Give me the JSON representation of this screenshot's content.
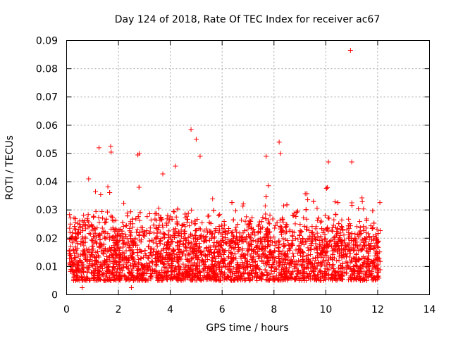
{
  "chart_data": {
    "type": "scatter",
    "title": "Day 124 of 2018, Rate Of TEC Index for receiver ac67",
    "xlabel": "GPS time / hours",
    "ylabel": "ROTI / TECUs",
    "xlim": [
      0,
      14
    ],
    "ylim": [
      0,
      0.09
    ],
    "xticks": [
      0,
      2,
      4,
      6,
      8,
      10,
      12,
      14
    ],
    "yticks": [
      0,
      0.01,
      0.02,
      0.03,
      0.04,
      0.05,
      0.06,
      0.07,
      0.08,
      0.09
    ],
    "xtick_labels": [
      "0",
      "2",
      "4",
      "6",
      "8",
      "10",
      "12",
      "14"
    ],
    "ytick_labels": [
      "0",
      "0.01",
      "0.02",
      "0.03",
      "0.04",
      "0.05",
      "0.06",
      "0.07",
      "0.08",
      "0.09"
    ],
    "grid": true,
    "marker": "+",
    "color": "#ff0000",
    "series": [
      {
        "name": "ROTI",
        "x_range": [
          0.1,
          12.1
        ],
        "bulk_range": [
          0.005,
          0.03
        ],
        "outliers": [
          {
            "x": 10.95,
            "y": 0.0865
          },
          {
            "x": 4.8,
            "y": 0.0585
          },
          {
            "x": 5.0,
            "y": 0.055
          },
          {
            "x": 1.25,
            "y": 0.052
          },
          {
            "x": 1.7,
            "y": 0.0525
          },
          {
            "x": 1.72,
            "y": 0.0505
          },
          {
            "x": 8.2,
            "y": 0.054
          },
          {
            "x": 8.25,
            "y": 0.05
          },
          {
            "x": 2.8,
            "y": 0.05
          },
          {
            "x": 4.2,
            "y": 0.0455
          },
          {
            "x": 5.15,
            "y": 0.049
          },
          {
            "x": 11.0,
            "y": 0.047
          },
          {
            "x": 10.1,
            "y": 0.047
          },
          {
            "x": 0.85,
            "y": 0.041
          },
          {
            "x": 7.7,
            "y": 0.049
          },
          {
            "x": 2.75,
            "y": 0.0495
          },
          {
            "x": 0.6,
            "y": 0.0025
          },
          {
            "x": 2.5,
            "y": 0.0025
          }
        ]
      }
    ]
  }
}
